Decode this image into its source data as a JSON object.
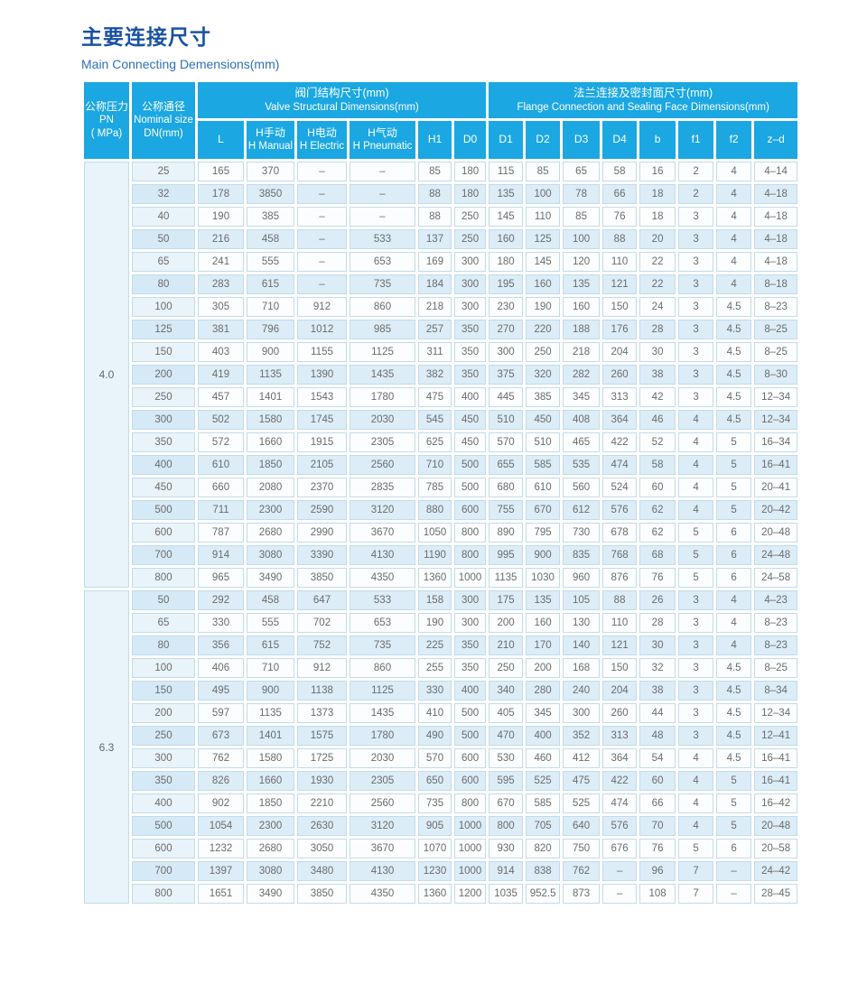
{
  "page": {
    "title_zh": "主要连接尺寸",
    "title_en": "Main Connecting Demensions(mm)"
  },
  "colors": {
    "header-bg": "#1BA7E2",
    "row-alt": "#DCEDF8",
    "row-white": "#FBFDFE",
    "dn-alt": "#D5E9F6",
    "dn-white": "#E9F3FA",
    "pn-bg": "#E8F3FA",
    "border": "#C2DBEA",
    "title-zh": "#1A52A5",
    "title-en": "#2E6FB7",
    "text": "#6B6B6B"
  },
  "table": {
    "pn_header": {
      "zh": "公称压力",
      "l2": "PN",
      "l3": "( MPa)"
    },
    "dn_header": {
      "zh": "公称通径",
      "l2": "Nominal size",
      "l3": "DN(mm)"
    },
    "group1": {
      "zh": "阀门结构尺寸(mm)",
      "en": "Valve Structural Dimensions(mm)"
    },
    "group2": {
      "zh": "法兰连接及密封面尺寸(mm)",
      "en": "Flange Connection and Sealing Face Dimensions(mm)"
    },
    "columns": [
      {
        "line1": "L",
        "line2": ""
      },
      {
        "line1": "H手动",
        "line2": "H Manual"
      },
      {
        "line1": "H电动",
        "line2": "H Electric"
      },
      {
        "line1": "H气动",
        "line2": "H Pneumatic"
      },
      {
        "line1": "H1",
        "line2": ""
      },
      {
        "line1": "D0",
        "line2": ""
      },
      {
        "line1": "D1",
        "line2": ""
      },
      {
        "line1": "D2",
        "line2": ""
      },
      {
        "line1": "D3",
        "line2": ""
      },
      {
        "line1": "D4",
        "line2": ""
      },
      {
        "line1": "b",
        "line2": ""
      },
      {
        "line1": "f1",
        "line2": ""
      },
      {
        "line1": "f2",
        "line2": ""
      },
      {
        "line1": "z–d",
        "line2": ""
      }
    ],
    "sections": [
      {
        "pn": "4.0",
        "rows": [
          [
            "25",
            "165",
            "370",
            "–",
            "–",
            "85",
            "180",
            "115",
            "85",
            "65",
            "58",
            "16",
            "2",
            "4",
            "4–14"
          ],
          [
            "32",
            "178",
            "3850",
            "–",
            "–",
            "88",
            "180",
            "135",
            "100",
            "78",
            "66",
            "18",
            "2",
            "4",
            "4–18"
          ],
          [
            "40",
            "190",
            "385",
            "–",
            "–",
            "88",
            "250",
            "145",
            "110",
            "85",
            "76",
            "18",
            "3",
            "4",
            "4–18"
          ],
          [
            "50",
            "216",
            "458",
            "–",
            "533",
            "137",
            "250",
            "160",
            "125",
            "100",
            "88",
            "20",
            "3",
            "4",
            "4–18"
          ],
          [
            "65",
            "241",
            "555",
            "–",
            "653",
            "169",
            "300",
            "180",
            "145",
            "120",
            "110",
            "22",
            "3",
            "4",
            "4–18"
          ],
          [
            "80",
            "283",
            "615",
            "–",
            "735",
            "184",
            "300",
            "195",
            "160",
            "135",
            "121",
            "22",
            "3",
            "4",
            "8–18"
          ],
          [
            "100",
            "305",
            "710",
            "912",
            "860",
            "218",
            "300",
            "230",
            "190",
            "160",
            "150",
            "24",
            "3",
            "4.5",
            "8–23"
          ],
          [
            "125",
            "381",
            "796",
            "1012",
            "985",
            "257",
            "350",
            "270",
            "220",
            "188",
            "176",
            "28",
            "3",
            "4.5",
            "8–25"
          ],
          [
            "150",
            "403",
            "900",
            "1155",
            "1125",
            "311",
            "350",
            "300",
            "250",
            "218",
            "204",
            "30",
            "3",
            "4.5",
            "8–25"
          ],
          [
            "200",
            "419",
            "1135",
            "1390",
            "1435",
            "382",
            "350",
            "375",
            "320",
            "282",
            "260",
            "38",
            "3",
            "4.5",
            "8–30"
          ],
          [
            "250",
            "457",
            "1401",
            "1543",
            "1780",
            "475",
            "400",
            "445",
            "385",
            "345",
            "313",
            "42",
            "3",
            "4.5",
            "12–34"
          ],
          [
            "300",
            "502",
            "1580",
            "1745",
            "2030",
            "545",
            "450",
            "510",
            "450",
            "408",
            "364",
            "46",
            "4",
            "4.5",
            "12–34"
          ],
          [
            "350",
            "572",
            "1660",
            "1915",
            "2305",
            "625",
            "450",
            "570",
            "510",
            "465",
            "422",
            "52",
            "4",
            "5",
            "16–34"
          ],
          [
            "400",
            "610",
            "1850",
            "2105",
            "2560",
            "710",
            "500",
            "655",
            "585",
            "535",
            "474",
            "58",
            "4",
            "5",
            "16–41"
          ],
          [
            "450",
            "660",
            "2080",
            "2370",
            "2835",
            "785",
            "500",
            "680",
            "610",
            "560",
            "524",
            "60",
            "4",
            "5",
            "20–41"
          ],
          [
            "500",
            "711",
            "2300",
            "2590",
            "3120",
            "880",
            "600",
            "755",
            "670",
            "612",
            "576",
            "62",
            "4",
            "5",
            "20–42"
          ],
          [
            "600",
            "787",
            "2680",
            "2990",
            "3670",
            "1050",
            "800",
            "890",
            "795",
            "730",
            "678",
            "62",
            "5",
            "6",
            "20–48"
          ],
          [
            "700",
            "914",
            "3080",
            "3390",
            "4130",
            "1190",
            "800",
            "995",
            "900",
            "835",
            "768",
            "68",
            "5",
            "6",
            "24–48"
          ],
          [
            "800",
            "965",
            "3490",
            "3850",
            "4350",
            "1360",
            "1000",
            "1135",
            "1030",
            "960",
            "876",
            "76",
            "5",
            "6",
            "24–58"
          ]
        ]
      },
      {
        "pn": "6.3",
        "rows": [
          [
            "50",
            "292",
            "458",
            "647",
            "533",
            "158",
            "300",
            "175",
            "135",
            "105",
            "88",
            "26",
            "3",
            "4",
            "4–23"
          ],
          [
            "65",
            "330",
            "555",
            "702",
            "653",
            "190",
            "300",
            "200",
            "160",
            "130",
            "110",
            "28",
            "3",
            "4",
            "8–23"
          ],
          [
            "80",
            "356",
            "615",
            "752",
            "735",
            "225",
            "350",
            "210",
            "170",
            "140",
            "121",
            "30",
            "3",
            "4",
            "8–23"
          ],
          [
            "100",
            "406",
            "710",
            "912",
            "860",
            "255",
            "350",
            "250",
            "200",
            "168",
            "150",
            "32",
            "3",
            "4.5",
            "8–25"
          ],
          [
            "150",
            "495",
            "900",
            "1138",
            "1125",
            "330",
            "400",
            "340",
            "280",
            "240",
            "204",
            "38",
            "3",
            "4.5",
            "8–34"
          ],
          [
            "200",
            "597",
            "1135",
            "1373",
            "1435",
            "410",
            "500",
            "405",
            "345",
            "300",
            "260",
            "44",
            "3",
            "4.5",
            "12–34"
          ],
          [
            "250",
            "673",
            "1401",
            "1575",
            "1780",
            "490",
            "500",
            "470",
            "400",
            "352",
            "313",
            "48",
            "3",
            "4.5",
            "12–41"
          ],
          [
            "300",
            "762",
            "1580",
            "1725",
            "2030",
            "570",
            "600",
            "530",
            "460",
            "412",
            "364",
            "54",
            "4",
            "4.5",
            "16–41"
          ],
          [
            "350",
            "826",
            "1660",
            "1930",
            "2305",
            "650",
            "600",
            "595",
            "525",
            "475",
            "422",
            "60",
            "4",
            "5",
            "16–41"
          ],
          [
            "400",
            "902",
            "1850",
            "2210",
            "2560",
            "735",
            "800",
            "670",
            "585",
            "525",
            "474",
            "66",
            "4",
            "5",
            "16–42"
          ],
          [
            "500",
            "1054",
            "2300",
            "2630",
            "3120",
            "905",
            "1000",
            "800",
            "705",
            "640",
            "576",
            "70",
            "4",
            "5",
            "20–48"
          ],
          [
            "600",
            "1232",
            "2680",
            "3050",
            "3670",
            "1070",
            "1000",
            "930",
            "820",
            "750",
            "676",
            "76",
            "5",
            "6",
            "20–58"
          ],
          [
            "700",
            "1397",
            "3080",
            "3480",
            "4130",
            "1230",
            "1000",
            "914",
            "838",
            "762",
            "–",
            "96",
            "7",
            "–",
            "24–42"
          ],
          [
            "800",
            "1651",
            "3490",
            "3850",
            "4350",
            "1360",
            "1200",
            "1035",
            "952.5",
            "873",
            "–",
            "108",
            "7",
            "–",
            "28–45"
          ]
        ]
      }
    ]
  }
}
